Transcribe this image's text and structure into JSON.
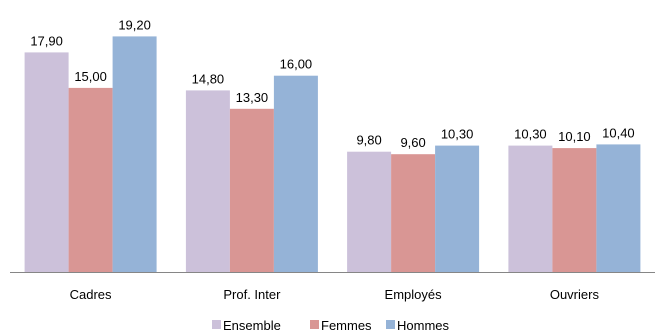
{
  "chart_data": {
    "type": "bar",
    "categories": [
      "Cadres",
      "Prof. Inter",
      "Employés",
      "Ouvriers"
    ],
    "series": [
      {
        "name": "Ensemble",
        "color": "#ccc1da",
        "values": [
          17.9,
          14.8,
          9.8,
          10.3
        ],
        "labels": [
          "17,90",
          "14,80",
          "9,80",
          "10,30"
        ]
      },
      {
        "name": "Femmes",
        "color": "#d99694",
        "values": [
          15.0,
          13.3,
          9.6,
          10.1
        ],
        "labels": [
          "15,00",
          "13,30",
          "9,60",
          "10,10"
        ]
      },
      {
        "name": "Hommes",
        "color": "#95b3d7",
        "values": [
          19.2,
          16.0,
          10.3,
          10.4
        ],
        "labels": [
          "19,20",
          "16,00",
          "10,30",
          "10,40"
        ]
      }
    ],
    "title": "",
    "xlabel": "",
    "ylabel": "",
    "ylim": [
      0,
      20.7
    ],
    "grid": false,
    "legend": "bottom"
  }
}
